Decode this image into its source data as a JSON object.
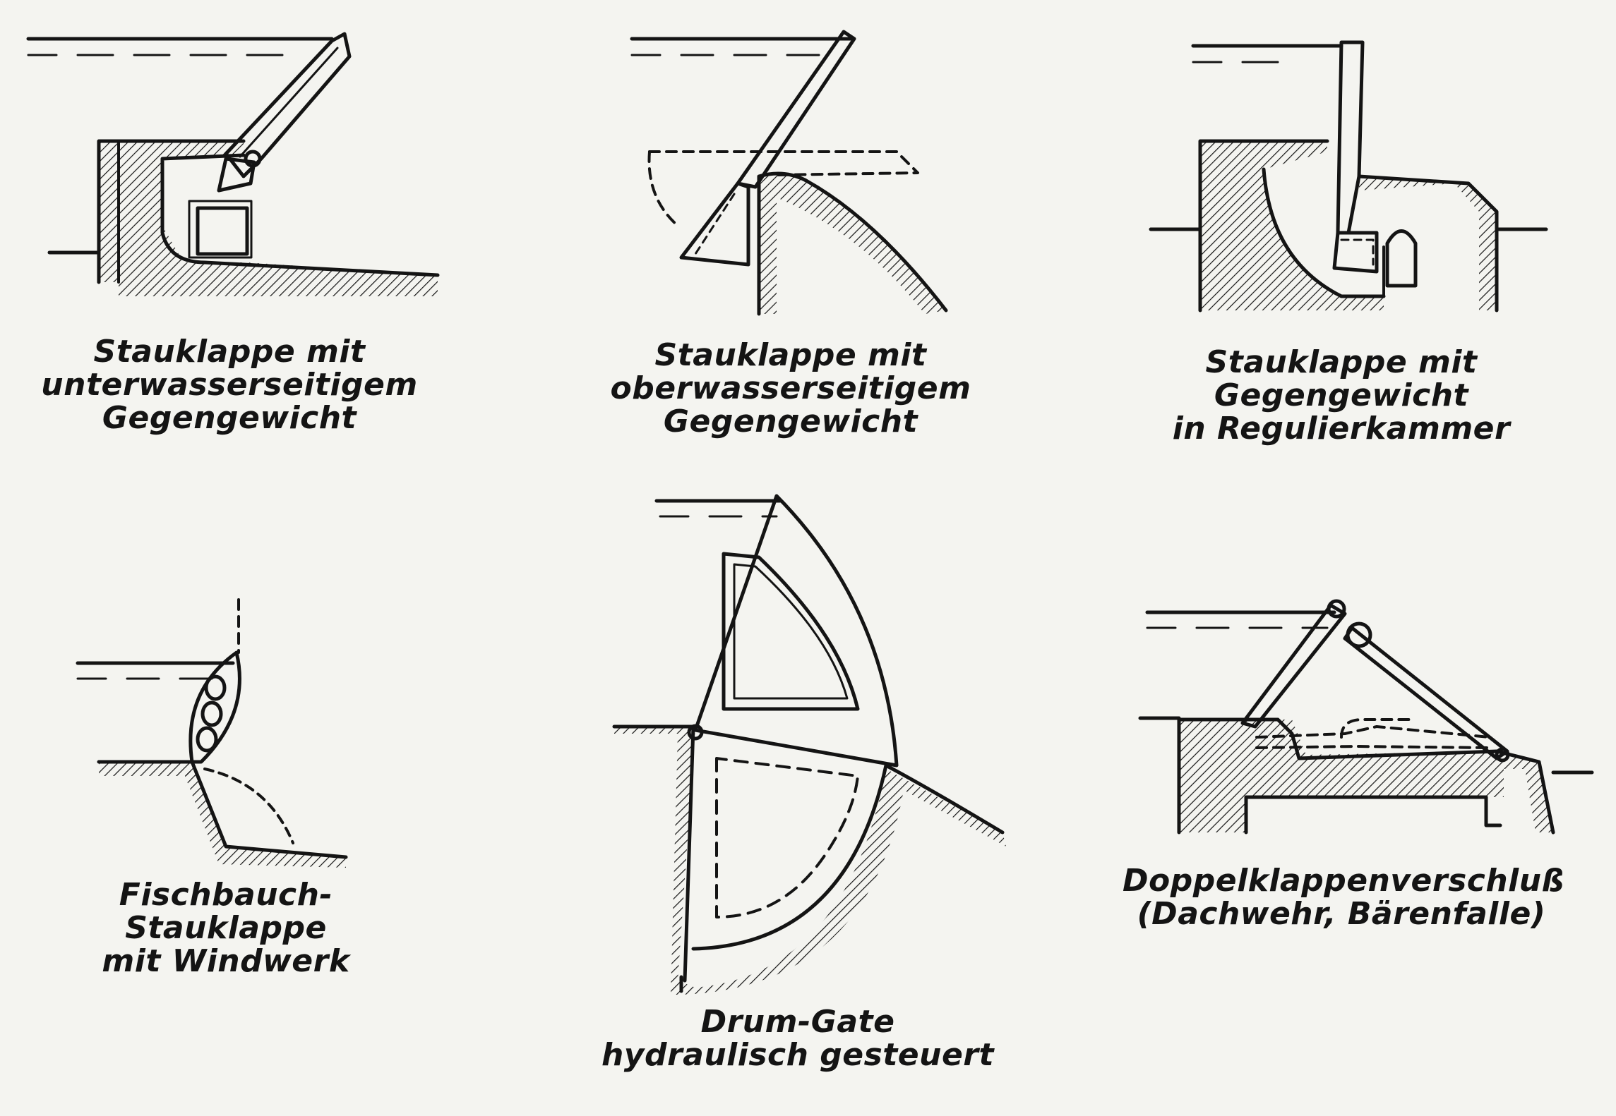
{
  "colors": {
    "ink": "#141414",
    "paper": "#f4f4f0"
  },
  "captions": {
    "flap_downstream": [
      "Stauklappe mit",
      "unterwasserseitigem",
      "Gegengewicht"
    ],
    "flap_upstream": [
      "Stauklappe mit",
      "oberwasserseitigem",
      "Gegengewicht"
    ],
    "flap_chamber": [
      "Stauklappe mit",
      "Gegengewicht",
      "in Regulierkammer"
    ],
    "fishbelly": [
      "Fischbauch-Stauklappe",
      "mit Windwerk"
    ],
    "drum_gate": [
      "Drum-Gate",
      "hydraulisch gesteuert"
    ],
    "bear_trap": [
      "Doppelklappenverschluß",
      "(Dachwehr, Bärenfalle)"
    ]
  }
}
